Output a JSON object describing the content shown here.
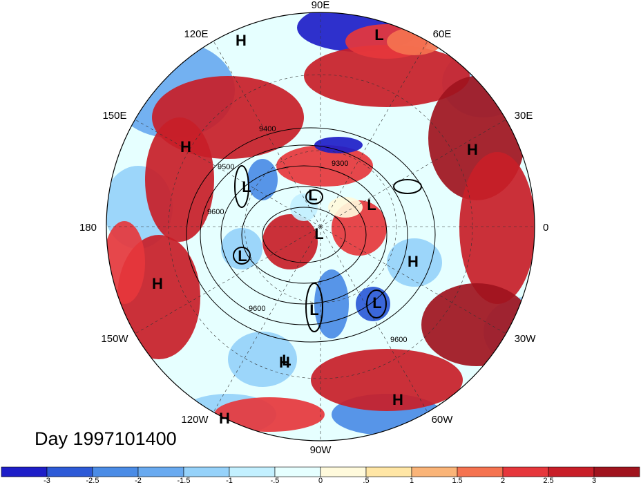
{
  "map": {
    "projection": "north-polar-stereographic",
    "graticule_lines": "dashed",
    "longitude_labels": [
      "90E",
      "60E",
      "30E",
      "0",
      "30W",
      "60W",
      "90W",
      "120W",
      "150W",
      "180",
      "150E",
      "120E"
    ],
    "contour_levels_labeled": [
      "9300",
      "9400",
      "9500",
      "9600"
    ],
    "pressure_centers": [
      "H",
      "L",
      "H",
      "H",
      "L",
      "L",
      "L",
      "L",
      "L",
      "H",
      "H",
      "L",
      "L",
      "H",
      "H",
      "H",
      "L"
    ]
  },
  "title": {
    "day_label": "Day 1997101400"
  },
  "colorbar": {
    "tick_labels": [
      "-3",
      "-2.5",
      "-2",
      "-1.5",
      "-1",
      "-.5",
      "0",
      ".5",
      "1",
      "1.5",
      "2",
      "2.5",
      "3"
    ],
    "colors": [
      "#1e1ec8",
      "#2d5ad7",
      "#4b8ce6",
      "#69aaf0",
      "#96d2fa",
      "#c3f0ff",
      "#e6ffff",
      "#fffadc",
      "#ffe6a5",
      "#fab478",
      "#f57350",
      "#e6373c",
      "#c81e28",
      "#a0141e"
    ]
  }
}
